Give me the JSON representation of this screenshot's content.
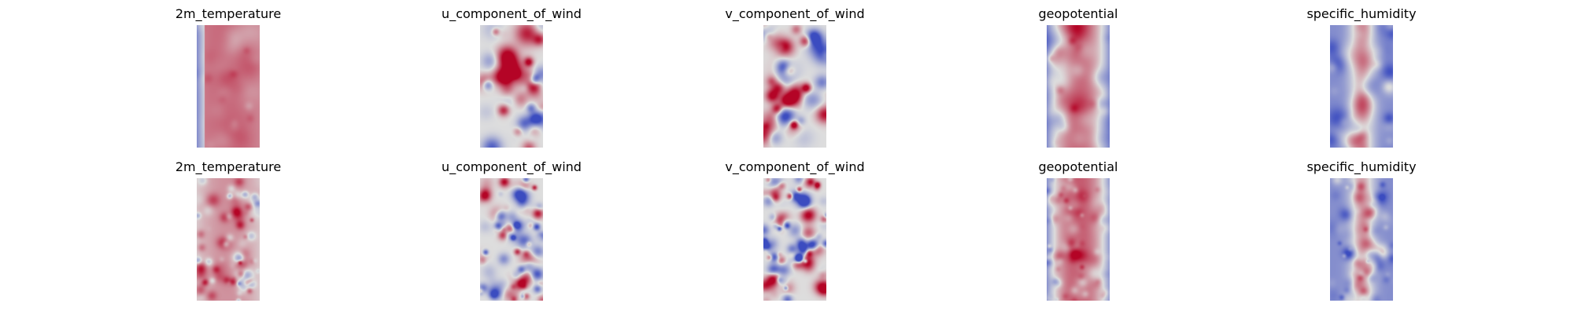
{
  "figure": {
    "rows": [
      {
        "panels": [
          {
            "title": "2m_temperature",
            "colormap": "coolwarm",
            "pattern": "temp"
          },
          {
            "title": "u_component_of_wind",
            "colormap": "coolwarm",
            "pattern": "uwind"
          },
          {
            "title": "v_component_of_wind",
            "colormap": "coolwarm",
            "pattern": "vwind"
          },
          {
            "title": "geopotential",
            "colormap": "coolwarm",
            "pattern": "geo"
          },
          {
            "title": "specific_humidity",
            "colormap": "coolwarm",
            "pattern": "humid"
          }
        ]
      },
      {
        "panels": [
          {
            "title": "2m_temperature",
            "colormap": "coolwarm",
            "pattern": "temp2"
          },
          {
            "title": "u_component_of_wind",
            "colormap": "coolwarm",
            "pattern": "uwind2"
          },
          {
            "title": "v_component_of_wind",
            "colormap": "coolwarm",
            "pattern": "vwind2"
          },
          {
            "title": "geopotential",
            "colormap": "coolwarm",
            "pattern": "geo2"
          },
          {
            "title": "specific_humidity",
            "colormap": "coolwarm",
            "pattern": "humid2"
          }
        ]
      }
    ],
    "colors": {
      "cold": "#3b4cc0",
      "neutral": "#dddddd",
      "warm": "#b40426"
    }
  }
}
